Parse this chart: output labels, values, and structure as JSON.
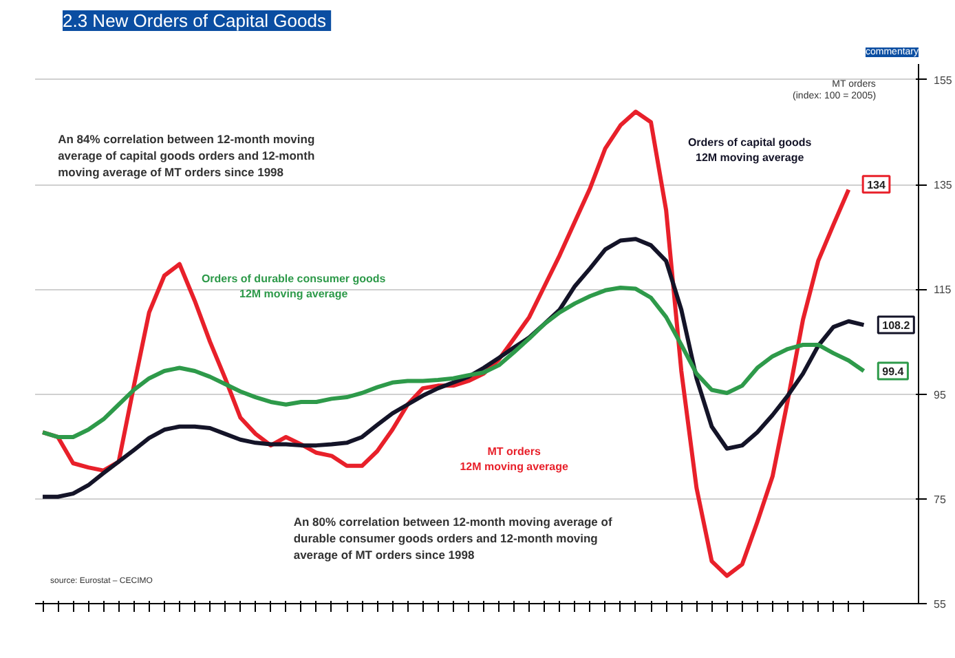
{
  "chart_data": {
    "type": "line",
    "title": "2.3  New Orders of Capital Goods",
    "ylabel": "MT orders\n(index: 100 = 2005)",
    "categories": [
      null,
      null,
      null,
      null,
      null,
      null,
      null,
      null,
      null,
      null,
      null,
      null,
      null,
      null,
      null,
      null,
      null,
      null,
      null,
      null,
      null,
      null,
      null,
      null,
      null,
      null,
      null,
      null,
      null,
      null,
      null,
      null,
      null,
      null,
      null,
      null,
      null,
      null,
      null,
      null,
      null,
      null,
      null,
      null,
      null,
      null,
      null,
      null,
      null,
      null,
      null,
      null,
      null,
      null,
      null
    ],
    "series": [
      {
        "name": "MT orders\n12M moving average",
        "color": "#e8202a",
        "values": [
          87.7,
          86.8,
          81.8,
          81.0,
          80.4,
          82.1,
          96.6,
          110.6,
          117.6,
          119.8,
          112.8,
          105.0,
          98.0,
          90.5,
          87.4,
          85.2,
          86.8,
          85.4,
          83.8,
          83.2,
          81.3,
          81.3,
          84.1,
          88.2,
          93.0,
          96.1,
          96.6,
          96.6,
          97.5,
          98.9,
          101.6,
          105.6,
          109.7,
          115.6,
          121.5,
          127.9,
          134.3,
          141.9,
          146.3,
          148.9,
          146.9,
          130.1,
          99.4,
          77.1,
          63.1,
          60.3,
          62.5,
          70.6,
          79.3,
          93.8,
          109.2,
          120.4,
          127.3,
          134,
          null
        ],
        "value_labels": [
          null,
          null,
          null,
          null,
          null,
          null,
          null,
          null,
          null,
          null,
          null,
          null,
          null,
          null,
          null,
          null,
          null,
          null,
          null,
          null,
          null,
          null,
          null,
          null,
          null,
          null,
          null,
          null,
          null,
          null,
          null,
          null,
          null,
          null,
          null,
          null,
          null,
          null,
          null,
          null,
          null,
          null,
          null,
          null,
          null,
          null,
          null,
          null,
          null,
          null,
          null,
          null,
          null,
          "134",
          null
        ]
      },
      {
        "name": "Orders of capital goods\n12M moving average",
        "color": "#141428",
        "values": [
          75.4,
          75.4,
          76.0,
          77.6,
          79.9,
          82.1,
          84.3,
          86.6,
          88.2,
          88.8,
          88.8,
          88.5,
          87.4,
          86.3,
          85.7,
          85.4,
          85.4,
          85.2,
          85.2,
          85.4,
          85.7,
          86.8,
          89.1,
          91.3,
          93.0,
          94.7,
          96.1,
          97.2,
          98.3,
          100.0,
          101.9,
          103.9,
          105.8,
          108.4,
          111.1,
          115.6,
          119.0,
          122.6,
          124.3,
          124.6,
          123.4,
          120.4,
          111.1,
          98.0,
          88.8,
          84.6,
          85.2,
          87.7,
          91.0,
          94.7,
          98.9,
          104.2,
          107.8,
          108.9,
          108.2
        ],
        "value_labels": [
          null,
          null,
          null,
          null,
          null,
          null,
          null,
          null,
          null,
          null,
          null,
          null,
          null,
          null,
          null,
          null,
          null,
          null,
          null,
          null,
          null,
          null,
          null,
          null,
          null,
          null,
          null,
          null,
          null,
          null,
          null,
          null,
          null,
          null,
          null,
          null,
          null,
          null,
          null,
          null,
          null,
          null,
          null,
          null,
          null,
          null,
          null,
          null,
          null,
          null,
          null,
          null,
          null,
          null,
          "108.2"
        ]
      },
      {
        "name": "Orders of durable consumer goods\n12M moving average",
        "color": "#2e9a4a",
        "values": [
          87.7,
          86.8,
          86.8,
          88.2,
          90.2,
          93.0,
          95.8,
          98.0,
          99.4,
          100.0,
          99.4,
          98.3,
          96.9,
          95.5,
          94.4,
          93.5,
          93.0,
          93.5,
          93.5,
          94.1,
          94.4,
          95.2,
          96.3,
          97.2,
          97.5,
          97.5,
          97.7,
          98.0,
          98.6,
          99.1,
          100.5,
          103.0,
          105.6,
          108.4,
          110.6,
          112.3,
          113.7,
          114.8,
          115.3,
          115.1,
          113.4,
          109.7,
          104.4,
          98.9,
          95.8,
          95.2,
          96.6,
          100.0,
          102.2,
          103.6,
          104.4,
          104.4,
          102.8,
          101.4,
          99.4
        ],
        "value_labels": [
          null,
          null,
          null,
          null,
          null,
          null,
          null,
          null,
          null,
          null,
          null,
          null,
          null,
          null,
          null,
          null,
          null,
          null,
          null,
          null,
          null,
          null,
          null,
          null,
          null,
          null,
          null,
          null,
          null,
          null,
          null,
          null,
          null,
          null,
          null,
          null,
          null,
          null,
          null,
          null,
          null,
          null,
          null,
          null,
          null,
          null,
          null,
          null,
          null,
          null,
          null,
          null,
          null,
          null,
          "99.4"
        ]
      }
    ],
    "ylim": [
      55,
      158
    ],
    "yticks": [
      55,
      75,
      95,
      115,
      135,
      155
    ],
    "grid": "y",
    "legend": false,
    "tick_labels": "y",
    "annotations": [
      "An 84% correlation between 12-month moving\naverage of capital goods orders and 12-month\nmoving average of MT orders since 1998",
      "An 80% correlation between 12-month moving average of\ndurable consumer goods orders and 12-month moving\naverage of MT orders since 1998",
      "source: Eurostat – CECIMO",
      "commentary"
    ]
  }
}
